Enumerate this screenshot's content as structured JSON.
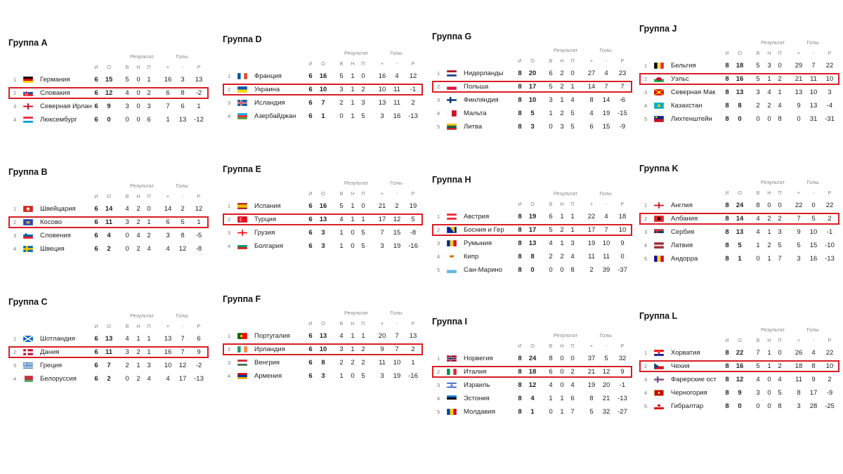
{
  "headers": {
    "result": "Результат",
    "goals": "Голы",
    "played": "И",
    "points": "О",
    "won": "В",
    "drawn": "Н",
    "lost": "П",
    "gf": "+",
    "ga": "-",
    "gd": "Р"
  },
  "groups": [
    {
      "title": "Группа A",
      "rows": [
        {
          "pos": "1",
          "flag": "de",
          "name": "Германия",
          "p": "6",
          "pts": "15",
          "w": "5",
          "d": "0",
          "l": "1",
          "gf": "16",
          "ga": "3",
          "gd": "13"
        },
        {
          "pos": "2",
          "flag": "sk",
          "name": "Словакия",
          "p": "6",
          "pts": "12",
          "w": "4",
          "d": "0",
          "l": "2",
          "gf": "6",
          "ga": "8",
          "gd": "-2",
          "hl": true
        },
        {
          "pos": "3",
          "flag": "nir",
          "name": "Северная Ирлан",
          "p": "6",
          "pts": "9",
          "w": "3",
          "d": "0",
          "l": "3",
          "gf": "7",
          "ga": "6",
          "gd": "1"
        },
        {
          "pos": "4",
          "flag": "lu",
          "name": "Люксембург",
          "p": "6",
          "pts": "0",
          "w": "0",
          "d": "0",
          "l": "6",
          "gf": "1",
          "ga": "13",
          "gd": "-12"
        }
      ]
    },
    {
      "title": "Группа B",
      "rows": [
        {
          "pos": "1",
          "flag": "ch",
          "name": "Швейцария",
          "p": "6",
          "pts": "14",
          "w": "4",
          "d": "2",
          "l": "0",
          "gf": "14",
          "ga": "2",
          "gd": "12"
        },
        {
          "pos": "2",
          "flag": "xk",
          "name": "Косово",
          "p": "6",
          "pts": "11",
          "w": "3",
          "d": "2",
          "l": "1",
          "gf": "6",
          "ga": "5",
          "gd": "1",
          "hl": true
        },
        {
          "pos": "3",
          "flag": "si",
          "name": "Словения",
          "p": "6",
          "pts": "4",
          "w": "0",
          "d": "4",
          "l": "2",
          "gf": "3",
          "ga": "8",
          "gd": "-5"
        },
        {
          "pos": "4",
          "flag": "se",
          "name": "Швеция",
          "p": "6",
          "pts": "2",
          "w": "0",
          "d": "2",
          "l": "4",
          "gf": "4",
          "ga": "12",
          "gd": "-8"
        }
      ]
    },
    {
      "title": "Группа C",
      "rows": [
        {
          "pos": "1",
          "flag": "sco",
          "name": "Шотландия",
          "p": "6",
          "pts": "13",
          "w": "4",
          "d": "1",
          "l": "1",
          "gf": "13",
          "ga": "7",
          "gd": "6"
        },
        {
          "pos": "2",
          "flag": "dk",
          "name": "Дания",
          "p": "6",
          "pts": "11",
          "w": "3",
          "d": "2",
          "l": "1",
          "gf": "16",
          "ga": "7",
          "gd": "9",
          "hl": true
        },
        {
          "pos": "3",
          "flag": "gr",
          "name": "Греция",
          "p": "6",
          "pts": "7",
          "w": "2",
          "d": "1",
          "l": "3",
          "gf": "10",
          "ga": "12",
          "gd": "-2"
        },
        {
          "pos": "4",
          "flag": "by",
          "name": "Белоруссия",
          "p": "6",
          "pts": "2",
          "w": "0",
          "d": "2",
          "l": "4",
          "gf": "4",
          "ga": "17",
          "gd": "-13"
        }
      ]
    },
    {
      "title": "Группа D",
      "rows": [
        {
          "pos": "1",
          "flag": "fr",
          "name": "Франция",
          "p": "6",
          "pts": "16",
          "w": "5",
          "d": "1",
          "l": "0",
          "gf": "16",
          "ga": "4",
          "gd": "12"
        },
        {
          "pos": "2",
          "flag": "ua",
          "name": "Украина",
          "p": "6",
          "pts": "10",
          "w": "3",
          "d": "1",
          "l": "2",
          "gf": "10",
          "ga": "11",
          "gd": "-1",
          "hl": true
        },
        {
          "pos": "3",
          "flag": "is",
          "name": "Исландия",
          "p": "6",
          "pts": "7",
          "w": "2",
          "d": "1",
          "l": "3",
          "gf": "13",
          "ga": "11",
          "gd": "2"
        },
        {
          "pos": "4",
          "flag": "az",
          "name": "Азербайджан",
          "p": "6",
          "pts": "1",
          "w": "0",
          "d": "1",
          "l": "5",
          "gf": "3",
          "ga": "16",
          "gd": "-13"
        }
      ]
    },
    {
      "title": "Группа E",
      "rows": [
        {
          "pos": "1",
          "flag": "es",
          "name": "Испания",
          "p": "6",
          "pts": "16",
          "w": "5",
          "d": "1",
          "l": "0",
          "gf": "21",
          "ga": "2",
          "gd": "19"
        },
        {
          "pos": "2",
          "flag": "tr",
          "name": "Турция",
          "p": "6",
          "pts": "13",
          "w": "4",
          "d": "1",
          "l": "1",
          "gf": "17",
          "ga": "12",
          "gd": "5",
          "hl": true
        },
        {
          "pos": "3",
          "flag": "ge",
          "name": "Грузия",
          "p": "6",
          "pts": "3",
          "w": "1",
          "d": "0",
          "l": "5",
          "gf": "7",
          "ga": "15",
          "gd": "-8"
        },
        {
          "pos": "4",
          "flag": "bg",
          "name": "Болгария",
          "p": "6",
          "pts": "3",
          "w": "1",
          "d": "0",
          "l": "5",
          "gf": "3",
          "ga": "19",
          "gd": "-16"
        }
      ]
    },
    {
      "title": "Группа F",
      "rows": [
        {
          "pos": "1",
          "flag": "pt",
          "name": "Португалия",
          "p": "6",
          "pts": "13",
          "w": "4",
          "d": "1",
          "l": "1",
          "gf": "20",
          "ga": "7",
          "gd": "13"
        },
        {
          "pos": "2",
          "flag": "ie",
          "name": "Ирландия",
          "p": "6",
          "pts": "10",
          "w": "3",
          "d": "1",
          "l": "2",
          "gf": "9",
          "ga": "7",
          "gd": "2",
          "hl": true
        },
        {
          "pos": "3",
          "flag": "hu",
          "name": "Венгрия",
          "p": "6",
          "pts": "8",
          "w": "2",
          "d": "2",
          "l": "2",
          "gf": "11",
          "ga": "10",
          "gd": "1"
        },
        {
          "pos": "4",
          "flag": "am",
          "name": "Армения",
          "p": "6",
          "pts": "3",
          "w": "1",
          "d": "0",
          "l": "5",
          "gf": "3",
          "ga": "19",
          "gd": "-16"
        }
      ]
    },
    {
      "title": "Группа G",
      "rows": [
        {
          "pos": "1",
          "flag": "nl",
          "name": "Нидерланды",
          "p": "8",
          "pts": "20",
          "w": "6",
          "d": "2",
          "l": "0",
          "gf": "27",
          "ga": "4",
          "gd": "23"
        },
        {
          "pos": "2",
          "flag": "pl",
          "name": "Польша",
          "p": "8",
          "pts": "17",
          "w": "5",
          "d": "2",
          "l": "1",
          "gf": "14",
          "ga": "7",
          "gd": "7",
          "hl": true
        },
        {
          "pos": "3",
          "flag": "fi",
          "name": "Финляндия",
          "p": "8",
          "pts": "10",
          "w": "3",
          "d": "1",
          "l": "4",
          "gf": "8",
          "ga": "14",
          "gd": "-6"
        },
        {
          "pos": "4",
          "flag": "mt",
          "name": "Мальта",
          "p": "8",
          "pts": "5",
          "w": "1",
          "d": "2",
          "l": "5",
          "gf": "4",
          "ga": "19",
          "gd": "-15"
        },
        {
          "pos": "5",
          "flag": "lt",
          "name": "Литва",
          "p": "8",
          "pts": "3",
          "w": "0",
          "d": "3",
          "l": "5",
          "gf": "6",
          "ga": "15",
          "gd": "-9"
        }
      ]
    },
    {
      "title": "Группа H",
      "rows": [
        {
          "pos": "1",
          "flag": "at",
          "name": "Австрия",
          "p": "8",
          "pts": "19",
          "w": "6",
          "d": "1",
          "l": "1",
          "gf": "22",
          "ga": "4",
          "gd": "18"
        },
        {
          "pos": "2",
          "flag": "ba",
          "name": "Босния и Гер",
          "p": "8",
          "pts": "17",
          "w": "5",
          "d": "2",
          "l": "1",
          "gf": "17",
          "ga": "7",
          "gd": "10",
          "hl": true
        },
        {
          "pos": "3",
          "flag": "ro",
          "name": "Румыния",
          "p": "8",
          "pts": "13",
          "w": "4",
          "d": "1",
          "l": "3",
          "gf": "19",
          "ga": "10",
          "gd": "9"
        },
        {
          "pos": "4",
          "flag": "cy",
          "name": "Кипр",
          "p": "8",
          "pts": "8",
          "w": "2",
          "d": "2",
          "l": "4",
          "gf": "11",
          "ga": "11",
          "gd": "0"
        },
        {
          "pos": "5",
          "flag": "sm",
          "name": "Сан-Марино",
          "p": "8",
          "pts": "0",
          "w": "0",
          "d": "0",
          "l": "8",
          "gf": "2",
          "ga": "39",
          "gd": "-37"
        }
      ]
    },
    {
      "title": "Группа I",
      "rows": [
        {
          "pos": "1",
          "flag": "no",
          "name": "Норвегия",
          "p": "8",
          "pts": "24",
          "w": "8",
          "d": "0",
          "l": "0",
          "gf": "37",
          "ga": "5",
          "gd": "32"
        },
        {
          "pos": "2",
          "flag": "it",
          "name": "Италия",
          "p": "8",
          "pts": "18",
          "w": "6",
          "d": "0",
          "l": "2",
          "gf": "21",
          "ga": "12",
          "gd": "9",
          "hl": true
        },
        {
          "pos": "3",
          "flag": "il",
          "name": "Израиль",
          "p": "8",
          "pts": "12",
          "w": "4",
          "d": "0",
          "l": "4",
          "gf": "19",
          "ga": "20",
          "gd": "-1"
        },
        {
          "pos": "4",
          "flag": "ee",
          "name": "Эстония",
          "p": "8",
          "pts": "4",
          "w": "1",
          "d": "1",
          "l": "6",
          "gf": "8",
          "ga": "21",
          "gd": "-13"
        },
        {
          "pos": "5",
          "flag": "md",
          "name": "Молдавия",
          "p": "8",
          "pts": "1",
          "w": "0",
          "d": "1",
          "l": "7",
          "gf": "5",
          "ga": "32",
          "gd": "-27"
        }
      ]
    },
    {
      "title": "Группа J",
      "rows": [
        {
          "pos": "1",
          "flag": "be",
          "name": "Бельгия",
          "p": "8",
          "pts": "18",
          "w": "5",
          "d": "3",
          "l": "0",
          "gf": "29",
          "ga": "7",
          "gd": "22"
        },
        {
          "pos": "2",
          "flag": "wal",
          "name": "Уэльс",
          "p": "8",
          "pts": "16",
          "w": "5",
          "d": "1",
          "l": "2",
          "gf": "21",
          "ga": "11",
          "gd": "10",
          "hl": true
        },
        {
          "pos": "3",
          "flag": "mk",
          "name": "Северная Мак",
          "p": "8",
          "pts": "13",
          "w": "3",
          "d": "4",
          "l": "1",
          "gf": "13",
          "ga": "10",
          "gd": "3"
        },
        {
          "pos": "4",
          "flag": "kz",
          "name": "Казахстан",
          "p": "8",
          "pts": "8",
          "w": "2",
          "d": "2",
          "l": "4",
          "gf": "9",
          "ga": "13",
          "gd": "-4"
        },
        {
          "pos": "5",
          "flag": "li",
          "name": "Лихтенштейн",
          "p": "8",
          "pts": "0",
          "w": "0",
          "d": "0",
          "l": "8",
          "gf": "0",
          "ga": "31",
          "gd": "-31"
        }
      ]
    },
    {
      "title": "Группа K",
      "rows": [
        {
          "pos": "1",
          "flag": "eng",
          "name": "Англия",
          "p": "8",
          "pts": "24",
          "w": "8",
          "d": "0",
          "l": "0",
          "gf": "22",
          "ga": "0",
          "gd": "22"
        },
        {
          "pos": "2",
          "flag": "al",
          "name": "Албания",
          "p": "8",
          "pts": "14",
          "w": "4",
          "d": "2",
          "l": "2",
          "gf": "7",
          "ga": "5",
          "gd": "2",
          "hl": true
        },
        {
          "pos": "3",
          "flag": "rs",
          "name": "Сербия",
          "p": "8",
          "pts": "13",
          "w": "4",
          "d": "1",
          "l": "3",
          "gf": "9",
          "ga": "10",
          "gd": "-1"
        },
        {
          "pos": "4",
          "flag": "lv",
          "name": "Латвия",
          "p": "8",
          "pts": "5",
          "w": "1",
          "d": "2",
          "l": "5",
          "gf": "5",
          "ga": "15",
          "gd": "-10"
        },
        {
          "pos": "5",
          "flag": "ad",
          "name": "Андорра",
          "p": "8",
          "pts": "1",
          "w": "0",
          "d": "1",
          "l": "7",
          "gf": "3",
          "ga": "16",
          "gd": "-13"
        }
      ]
    },
    {
      "title": "Группа L",
      "rows": [
        {
          "pos": "1",
          "flag": "hr",
          "name": "Хорватия",
          "p": "8",
          "pts": "22",
          "w": "7",
          "d": "1",
          "l": "0",
          "gf": "26",
          "ga": "4",
          "gd": "22"
        },
        {
          "pos": "2",
          "flag": "cz",
          "name": "Чехия",
          "p": "8",
          "pts": "16",
          "w": "5",
          "d": "1",
          "l": "2",
          "gf": "18",
          "ga": "8",
          "gd": "10",
          "hl": true
        },
        {
          "pos": "3",
          "flag": "fo",
          "name": "Фарерские ост",
          "p": "8",
          "pts": "12",
          "w": "4",
          "d": "0",
          "l": "4",
          "gf": "11",
          "ga": "9",
          "gd": "2"
        },
        {
          "pos": "4",
          "flag": "me",
          "name": "Черногория",
          "p": "8",
          "pts": "9",
          "w": "3",
          "d": "0",
          "l": "5",
          "gf": "8",
          "ga": "17",
          "gd": "-9"
        },
        {
          "pos": "5",
          "flag": "gi",
          "name": "Гибралтар",
          "p": "8",
          "pts": "0",
          "w": "0",
          "d": "0",
          "l": "8",
          "gf": "3",
          "ga": "28",
          "gd": "-25"
        }
      ]
    }
  ]
}
